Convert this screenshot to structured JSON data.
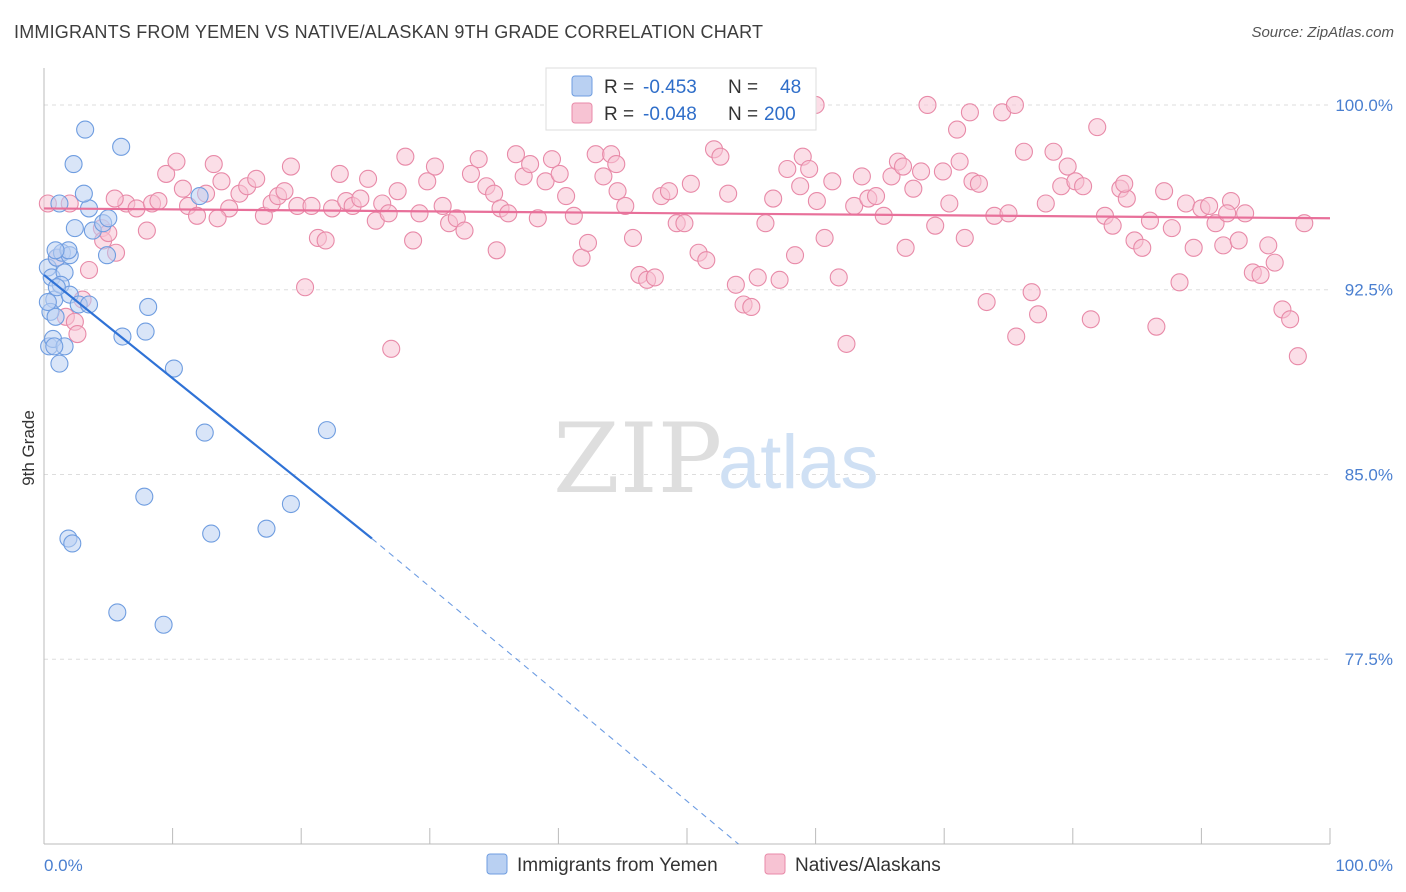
{
  "title": "IMMIGRANTS FROM YEMEN VS NATIVE/ALASKAN 9TH GRADE CORRELATION CHART",
  "source": "Source: ZipAtlas.com",
  "watermark": {
    "zip": "ZIP",
    "atlas": "atlas"
  },
  "colors": {
    "blue_fill": "#b9d0f2",
    "blue_stroke": "#6f9de0",
    "blue_line": "#2f72d6",
    "pink_fill": "#f7c3d3",
    "pink_stroke": "#e88aa8",
    "pink_line": "#e8709a",
    "grid": "#dddddd",
    "tick_text": "#4a7fd0"
  },
  "legend": {
    "rows": [
      {
        "r_label": "R =",
        "r_value": "-0.453",
        "n_label": "N =",
        "n_value": "48"
      },
      {
        "r_label": "R =",
        "r_value": "-0.048",
        "n_label": "N =",
        "n_value": "200"
      }
    ]
  },
  "chart_data": {
    "type": "scatter",
    "title": "IMMIGRANTS FROM YEMEN VS NATIVE/ALASKAN 9TH GRADE CORRELATION CHART",
    "xlabel": "",
    "ylabel": "9th Grade",
    "xlim": [
      0,
      100
    ],
    "ylim": [
      70.0,
      101.5
    ],
    "x_tick_labels": [
      "0.0%",
      "100.0%"
    ],
    "y_ticks": [
      77.5,
      85.0,
      92.5,
      100.0
    ],
    "y_tick_labels": [
      "77.5%",
      "85.0%",
      "92.5%",
      "100.0%"
    ],
    "series": [
      {
        "name": "Immigrants from Yemen",
        "color": "blue",
        "trend": {
          "x0": 0,
          "y0": 93.1,
          "x1": 25.5,
          "y1": 82.4,
          "dash_to_x": 54,
          "dash_to_y": 70.0
        },
        "points": [
          [
            0.3,
            93.4
          ],
          [
            0.6,
            93.0
          ],
          [
            0.8,
            92.1
          ],
          [
            0.5,
            91.6
          ],
          [
            0.9,
            91.4
          ],
          [
            0.4,
            90.2
          ],
          [
            0.7,
            90.5
          ],
          [
            1.2,
            89.5
          ],
          [
            1.6,
            90.2
          ],
          [
            1.0,
            93.8
          ],
          [
            1.4,
            94.0
          ],
          [
            2.0,
            93.9
          ],
          [
            1.6,
            93.2
          ],
          [
            1.3,
            92.7
          ],
          [
            2.0,
            92.3
          ],
          [
            2.7,
            91.9
          ],
          [
            3.5,
            91.9
          ],
          [
            2.4,
            95.0
          ],
          [
            1.9,
            94.1
          ],
          [
            1.2,
            96.0
          ],
          [
            3.5,
            95.8
          ],
          [
            3.8,
            94.9
          ],
          [
            4.6,
            95.2
          ],
          [
            4.9,
            93.9
          ],
          [
            5.0,
            95.4
          ],
          [
            3.1,
            96.4
          ],
          [
            2.3,
            97.6
          ],
          [
            3.2,
            99.0
          ],
          [
            6.0,
            98.3
          ],
          [
            6.1,
            90.6
          ],
          [
            8.1,
            91.8
          ],
          [
            7.9,
            90.8
          ],
          [
            10.1,
            89.3
          ],
          [
            12.5,
            86.7
          ],
          [
            22.0,
            86.8
          ],
          [
            7.8,
            84.1
          ],
          [
            19.2,
            83.8
          ],
          [
            13.0,
            82.6
          ],
          [
            17.3,
            82.8
          ],
          [
            1.9,
            82.4
          ],
          [
            2.2,
            82.2
          ],
          [
            5.7,
            79.4
          ],
          [
            9.3,
            78.9
          ],
          [
            12.1,
            96.3
          ],
          [
            0.9,
            94.1
          ],
          [
            1.0,
            92.6
          ],
          [
            0.3,
            92.0
          ],
          [
            0.8,
            90.2
          ]
        ]
      },
      {
        "name": "Natives/Alaskans",
        "color": "pink",
        "trend": {
          "x0": 0,
          "y0": 95.8,
          "x1": 100,
          "y1": 95.4
        },
        "points": [
          [
            0.3,
            96.0
          ],
          [
            1.0,
            93.8
          ],
          [
            1.7,
            91.4
          ],
          [
            2.4,
            91.2
          ],
          [
            2.6,
            90.7
          ],
          [
            3.0,
            92.1
          ],
          [
            3.5,
            93.3
          ],
          [
            4.5,
            95.0
          ],
          [
            4.6,
            94.5
          ],
          [
            5.0,
            94.8
          ],
          [
            5.6,
            94.0
          ],
          [
            6.4,
            96.0
          ],
          [
            7.2,
            95.8
          ],
          [
            8.0,
            94.9
          ],
          [
            8.4,
            96.0
          ],
          [
            8.9,
            96.1
          ],
          [
            9.5,
            97.2
          ],
          [
            10.3,
            97.7
          ],
          [
            10.8,
            96.6
          ],
          [
            11.2,
            95.9
          ],
          [
            11.9,
            95.5
          ],
          [
            12.6,
            96.4
          ],
          [
            13.2,
            97.6
          ],
          [
            13.8,
            96.9
          ],
          [
            14.4,
            95.8
          ],
          [
            15.2,
            96.4
          ],
          [
            15.8,
            96.7
          ],
          [
            16.5,
            97.0
          ],
          [
            17.1,
            95.5
          ],
          [
            17.7,
            96.0
          ],
          [
            18.2,
            96.3
          ],
          [
            18.7,
            96.5
          ],
          [
            19.2,
            97.5
          ],
          [
            19.7,
            95.9
          ],
          [
            20.3,
            92.6
          ],
          [
            20.8,
            95.9
          ],
          [
            21.3,
            94.6
          ],
          [
            21.9,
            94.5
          ],
          [
            22.4,
            95.8
          ],
          [
            23.0,
            97.2
          ],
          [
            23.5,
            96.1
          ],
          [
            24.0,
            95.9
          ],
          [
            24.6,
            96.2
          ],
          [
            25.2,
            97.0
          ],
          [
            25.8,
            95.3
          ],
          [
            26.3,
            96.0
          ],
          [
            27.0,
            90.1
          ],
          [
            27.5,
            96.5
          ],
          [
            28.1,
            97.9
          ],
          [
            28.7,
            94.5
          ],
          [
            29.2,
            95.6
          ],
          [
            29.8,
            96.9
          ],
          [
            30.4,
            97.5
          ],
          [
            31.0,
            95.9
          ],
          [
            31.5,
            95.2
          ],
          [
            32.1,
            95.4
          ],
          [
            32.7,
            94.9
          ],
          [
            33.2,
            97.2
          ],
          [
            33.8,
            97.8
          ],
          [
            34.4,
            96.7
          ],
          [
            35.0,
            96.4
          ],
          [
            35.5,
            95.8
          ],
          [
            36.1,
            95.6
          ],
          [
            36.7,
            98.0
          ],
          [
            37.3,
            97.1
          ],
          [
            37.8,
            97.6
          ],
          [
            38.4,
            95.4
          ],
          [
            39.0,
            96.9
          ],
          [
            39.5,
            97.8
          ],
          [
            40.1,
            97.2
          ],
          [
            40.6,
            96.3
          ],
          [
            41.2,
            95.5
          ],
          [
            41.8,
            93.8
          ],
          [
            42.3,
            94.4
          ],
          [
            42.9,
            98.0
          ],
          [
            43.5,
            97.1
          ],
          [
            44.1,
            98.0
          ],
          [
            44.6,
            96.5
          ],
          [
            45.2,
            95.9
          ],
          [
            45.8,
            94.6
          ],
          [
            46.3,
            93.1
          ],
          [
            46.9,
            92.9
          ],
          [
            47.5,
            93.0
          ],
          [
            48.0,
            96.3
          ],
          [
            48.6,
            96.5
          ],
          [
            49.2,
            95.2
          ],
          [
            49.8,
            95.2
          ],
          [
            50.3,
            96.8
          ],
          [
            50.9,
            94.0
          ],
          [
            51.5,
            93.7
          ],
          [
            52.1,
            98.2
          ],
          [
            52.6,
            97.9
          ],
          [
            53.2,
            96.4
          ],
          [
            53.8,
            92.7
          ],
          [
            54.4,
            91.9
          ],
          [
            55.0,
            91.8
          ],
          [
            55.5,
            93.0
          ],
          [
            56.1,
            95.2
          ],
          [
            56.7,
            96.2
          ],
          [
            57.2,
            92.9
          ],
          [
            57.8,
            97.4
          ],
          [
            58.4,
            93.9
          ],
          [
            59.0,
            97.9
          ],
          [
            59.5,
            97.4
          ],
          [
            60.1,
            96.1
          ],
          [
            60.7,
            94.6
          ],
          [
            61.3,
            96.9
          ],
          [
            61.8,
            93.0
          ],
          [
            62.4,
            90.3
          ],
          [
            63.0,
            95.9
          ],
          [
            63.6,
            97.1
          ],
          [
            64.1,
            96.2
          ],
          [
            64.7,
            96.3
          ],
          [
            65.3,
            95.5
          ],
          [
            65.9,
            97.1
          ],
          [
            66.4,
            97.7
          ],
          [
            67.0,
            94.2
          ],
          [
            67.6,
            96.6
          ],
          [
            68.2,
            97.3
          ],
          [
            68.7,
            100.0
          ],
          [
            69.3,
            95.1
          ],
          [
            69.9,
            97.3
          ],
          [
            70.4,
            96.0
          ],
          [
            71.0,
            99.0
          ],
          [
            71.6,
            94.6
          ],
          [
            72.2,
            96.9
          ],
          [
            72.7,
            96.8
          ],
          [
            73.3,
            92.0
          ],
          [
            73.9,
            95.5
          ],
          [
            74.5,
            99.7
          ],
          [
            75.0,
            95.6
          ],
          [
            75.6,
            90.6
          ],
          [
            76.2,
            98.1
          ],
          [
            76.8,
            92.4
          ],
          [
            77.3,
            91.5
          ],
          [
            77.9,
            96.0
          ],
          [
            78.5,
            98.1
          ],
          [
            79.1,
            96.7
          ],
          [
            79.6,
            97.5
          ],
          [
            80.2,
            96.9
          ],
          [
            80.8,
            96.7
          ],
          [
            81.4,
            91.3
          ],
          [
            81.9,
            99.1
          ],
          [
            82.5,
            95.5
          ],
          [
            83.1,
            95.1
          ],
          [
            83.7,
            96.6
          ],
          [
            84.2,
            96.2
          ],
          [
            84.8,
            94.5
          ],
          [
            85.4,
            94.2
          ],
          [
            86.0,
            95.3
          ],
          [
            86.5,
            91.0
          ],
          [
            87.1,
            96.5
          ],
          [
            87.7,
            95.0
          ],
          [
            88.3,
            92.8
          ],
          [
            88.8,
            96.0
          ],
          [
            89.4,
            94.2
          ],
          [
            90.0,
            95.8
          ],
          [
            90.6,
            95.9
          ],
          [
            91.1,
            95.2
          ],
          [
            91.7,
            94.3
          ],
          [
            92.3,
            96.1
          ],
          [
            92.9,
            94.5
          ],
          [
            93.4,
            95.6
          ],
          [
            94.0,
            93.2
          ],
          [
            94.6,
            93.1
          ],
          [
            95.2,
            94.3
          ],
          [
            95.7,
            93.6
          ],
          [
            96.3,
            91.7
          ],
          [
            96.9,
            91.3
          ],
          [
            97.5,
            89.8
          ],
          [
            98.0,
            95.2
          ],
          [
            60.0,
            100.0
          ],
          [
            75.5,
            100.0
          ],
          [
            71.2,
            97.7
          ],
          [
            72.0,
            99.7
          ],
          [
            2.0,
            96.0
          ],
          [
            5.5,
            96.2
          ],
          [
            13.5,
            95.4
          ],
          [
            26.8,
            95.6
          ],
          [
            35.2,
            94.1
          ],
          [
            44.5,
            97.6
          ],
          [
            58.8,
            96.7
          ],
          [
            66.8,
            97.5
          ],
          [
            84.0,
            96.8
          ],
          [
            92.0,
            95.6
          ]
        ]
      }
    ]
  },
  "bottom_legend": [
    {
      "label": "Immigrants from Yemen",
      "color": "blue"
    },
    {
      "label": "Natives/Alaskans",
      "color": "pink"
    }
  ]
}
